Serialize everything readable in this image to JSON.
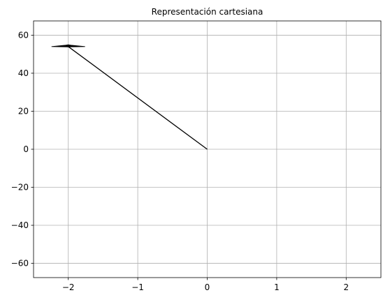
{
  "chart_data": {
    "type": "line",
    "title": "Representación cartesiana",
    "xlabel": "",
    "ylabel": "",
    "xlim": [
      -2.5,
      2.5
    ],
    "ylim": [
      -67.5,
      67.5
    ],
    "grid": true,
    "x_ticks": [
      -2,
      -1,
      0,
      1,
      2
    ],
    "y_ticks": [
      -60,
      -40,
      -20,
      0,
      20,
      40,
      60
    ],
    "x_tick_labels": [
      "−2",
      "−1",
      "0",
      "1",
      "2"
    ],
    "y_tick_labels": [
      "−60",
      "−40",
      "−20",
      "0",
      "20",
      "40",
      "60"
    ],
    "arrow": {
      "start": [
        0,
        0
      ],
      "end": [
        -2,
        54
      ],
      "color": "#000000"
    }
  }
}
